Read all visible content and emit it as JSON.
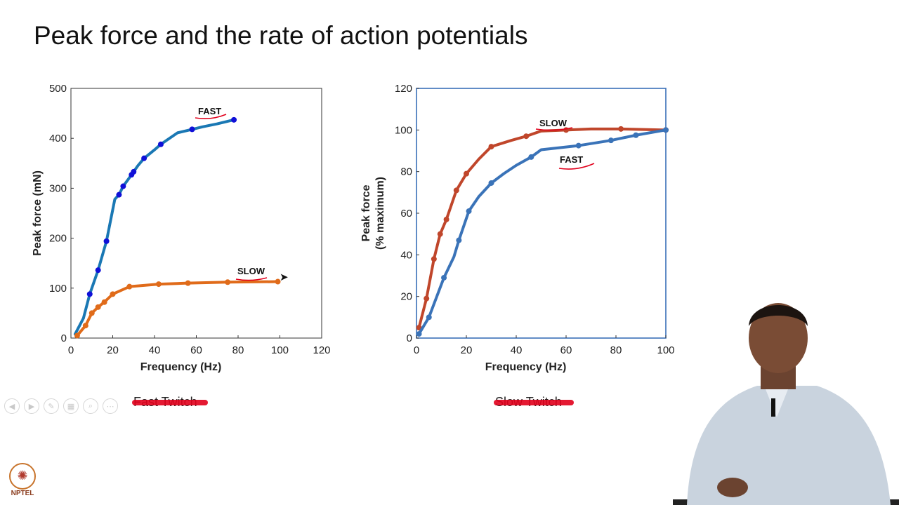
{
  "slide": {
    "title": "Peak force and the rate of action potentials",
    "captions": {
      "left": "Fast Twitch",
      "right": "Slow Twitch"
    },
    "toolbar_icons": [
      "prev-icon",
      "next-icon",
      "pen-icon",
      "grid-icon",
      "zoom-icon",
      "more-icon"
    ],
    "logo_text": "NPTEL"
  },
  "chart_data": [
    {
      "type": "line",
      "title": "",
      "xlabel": "Frequency (Hz)",
      "ylabel": "Peak force (mN)",
      "xlim": [
        0,
        120
      ],
      "ylim": [
        0,
        500
      ],
      "xticks": [
        0,
        20,
        40,
        60,
        80,
        100,
        120
      ],
      "yticks": [
        0,
        100,
        200,
        300,
        400,
        500
      ],
      "series": [
        {
          "name": "FAST",
          "color": "#1a78b4",
          "marker_color": "#1010d8",
          "x": [
            2,
            6,
            9,
            13,
            17,
            21,
            23,
            25,
            29,
            30,
            32,
            35,
            40,
            43,
            51,
            58,
            63,
            70,
            78
          ],
          "y": [
            8,
            40,
            88,
            136,
            194,
            278,
            287,
            304,
            327,
            333,
            345,
            360,
            377,
            388,
            411,
            418,
            423,
            429,
            437
          ],
          "markers": [
            false,
            false,
            true,
            true,
            true,
            false,
            true,
            true,
            true,
            true,
            false,
            true,
            false,
            true,
            false,
            true,
            false,
            false,
            true
          ]
        },
        {
          "name": "SLOW",
          "color": "#e06b1a",
          "marker_color": "#e06b1a",
          "x": [
            3,
            7,
            10,
            13,
            16,
            20,
            28,
            42,
            56,
            75,
            99
          ],
          "y": [
            5,
            25,
            50,
            62,
            72,
            88,
            103,
            108,
            110,
            112,
            113
          ],
          "markers": [
            true,
            true,
            true,
            true,
            true,
            true,
            true,
            true,
            true,
            true,
            true
          ]
        }
      ],
      "annotations": [
        "FAST",
        "SLOW"
      ]
    },
    {
      "type": "line",
      "title": "",
      "xlabel": "Frequency (Hz)",
      "ylabel": "Peak force",
      "ylabel2": "(% maximum)",
      "xlim": [
        0,
        100
      ],
      "ylim": [
        0,
        120
      ],
      "xticks": [
        0,
        20,
        40,
        60,
        80,
        100
      ],
      "yticks": [
        0,
        20,
        40,
        60,
        80,
        100,
        120
      ],
      "series": [
        {
          "name": "SLOW",
          "color": "#c0462b",
          "x": [
            1,
            4,
            7,
            9.5,
            12,
            16,
            20,
            25,
            30,
            38,
            44,
            50,
            60,
            70,
            82,
            100
          ],
          "y": [
            5,
            19,
            38,
            50,
            57,
            71,
            79,
            86,
            92,
            95,
            97,
            99.5,
            100,
            100.5,
            100.5,
            100
          ],
          "markers": [
            true,
            true,
            true,
            true,
            true,
            true,
            true,
            false,
            true,
            false,
            true,
            false,
            true,
            false,
            true,
            true
          ]
        },
        {
          "name": "FAST",
          "color": "#3a73b8",
          "x": [
            1,
            5,
            11,
            15,
            17,
            21,
            25,
            30,
            35,
            40,
            46,
            50,
            65,
            78,
            88,
            100
          ],
          "y": [
            2,
            10,
            29,
            39,
            47,
            61,
            68,
            74.5,
            79,
            83,
            87,
            90.5,
            92.5,
            95,
            97.5,
            100
          ],
          "markers": [
            true,
            true,
            true,
            false,
            true,
            true,
            false,
            true,
            false,
            false,
            true,
            false,
            true,
            true,
            true,
            true
          ]
        }
      ],
      "annotations": [
        "SLOW",
        "FAST"
      ]
    }
  ]
}
